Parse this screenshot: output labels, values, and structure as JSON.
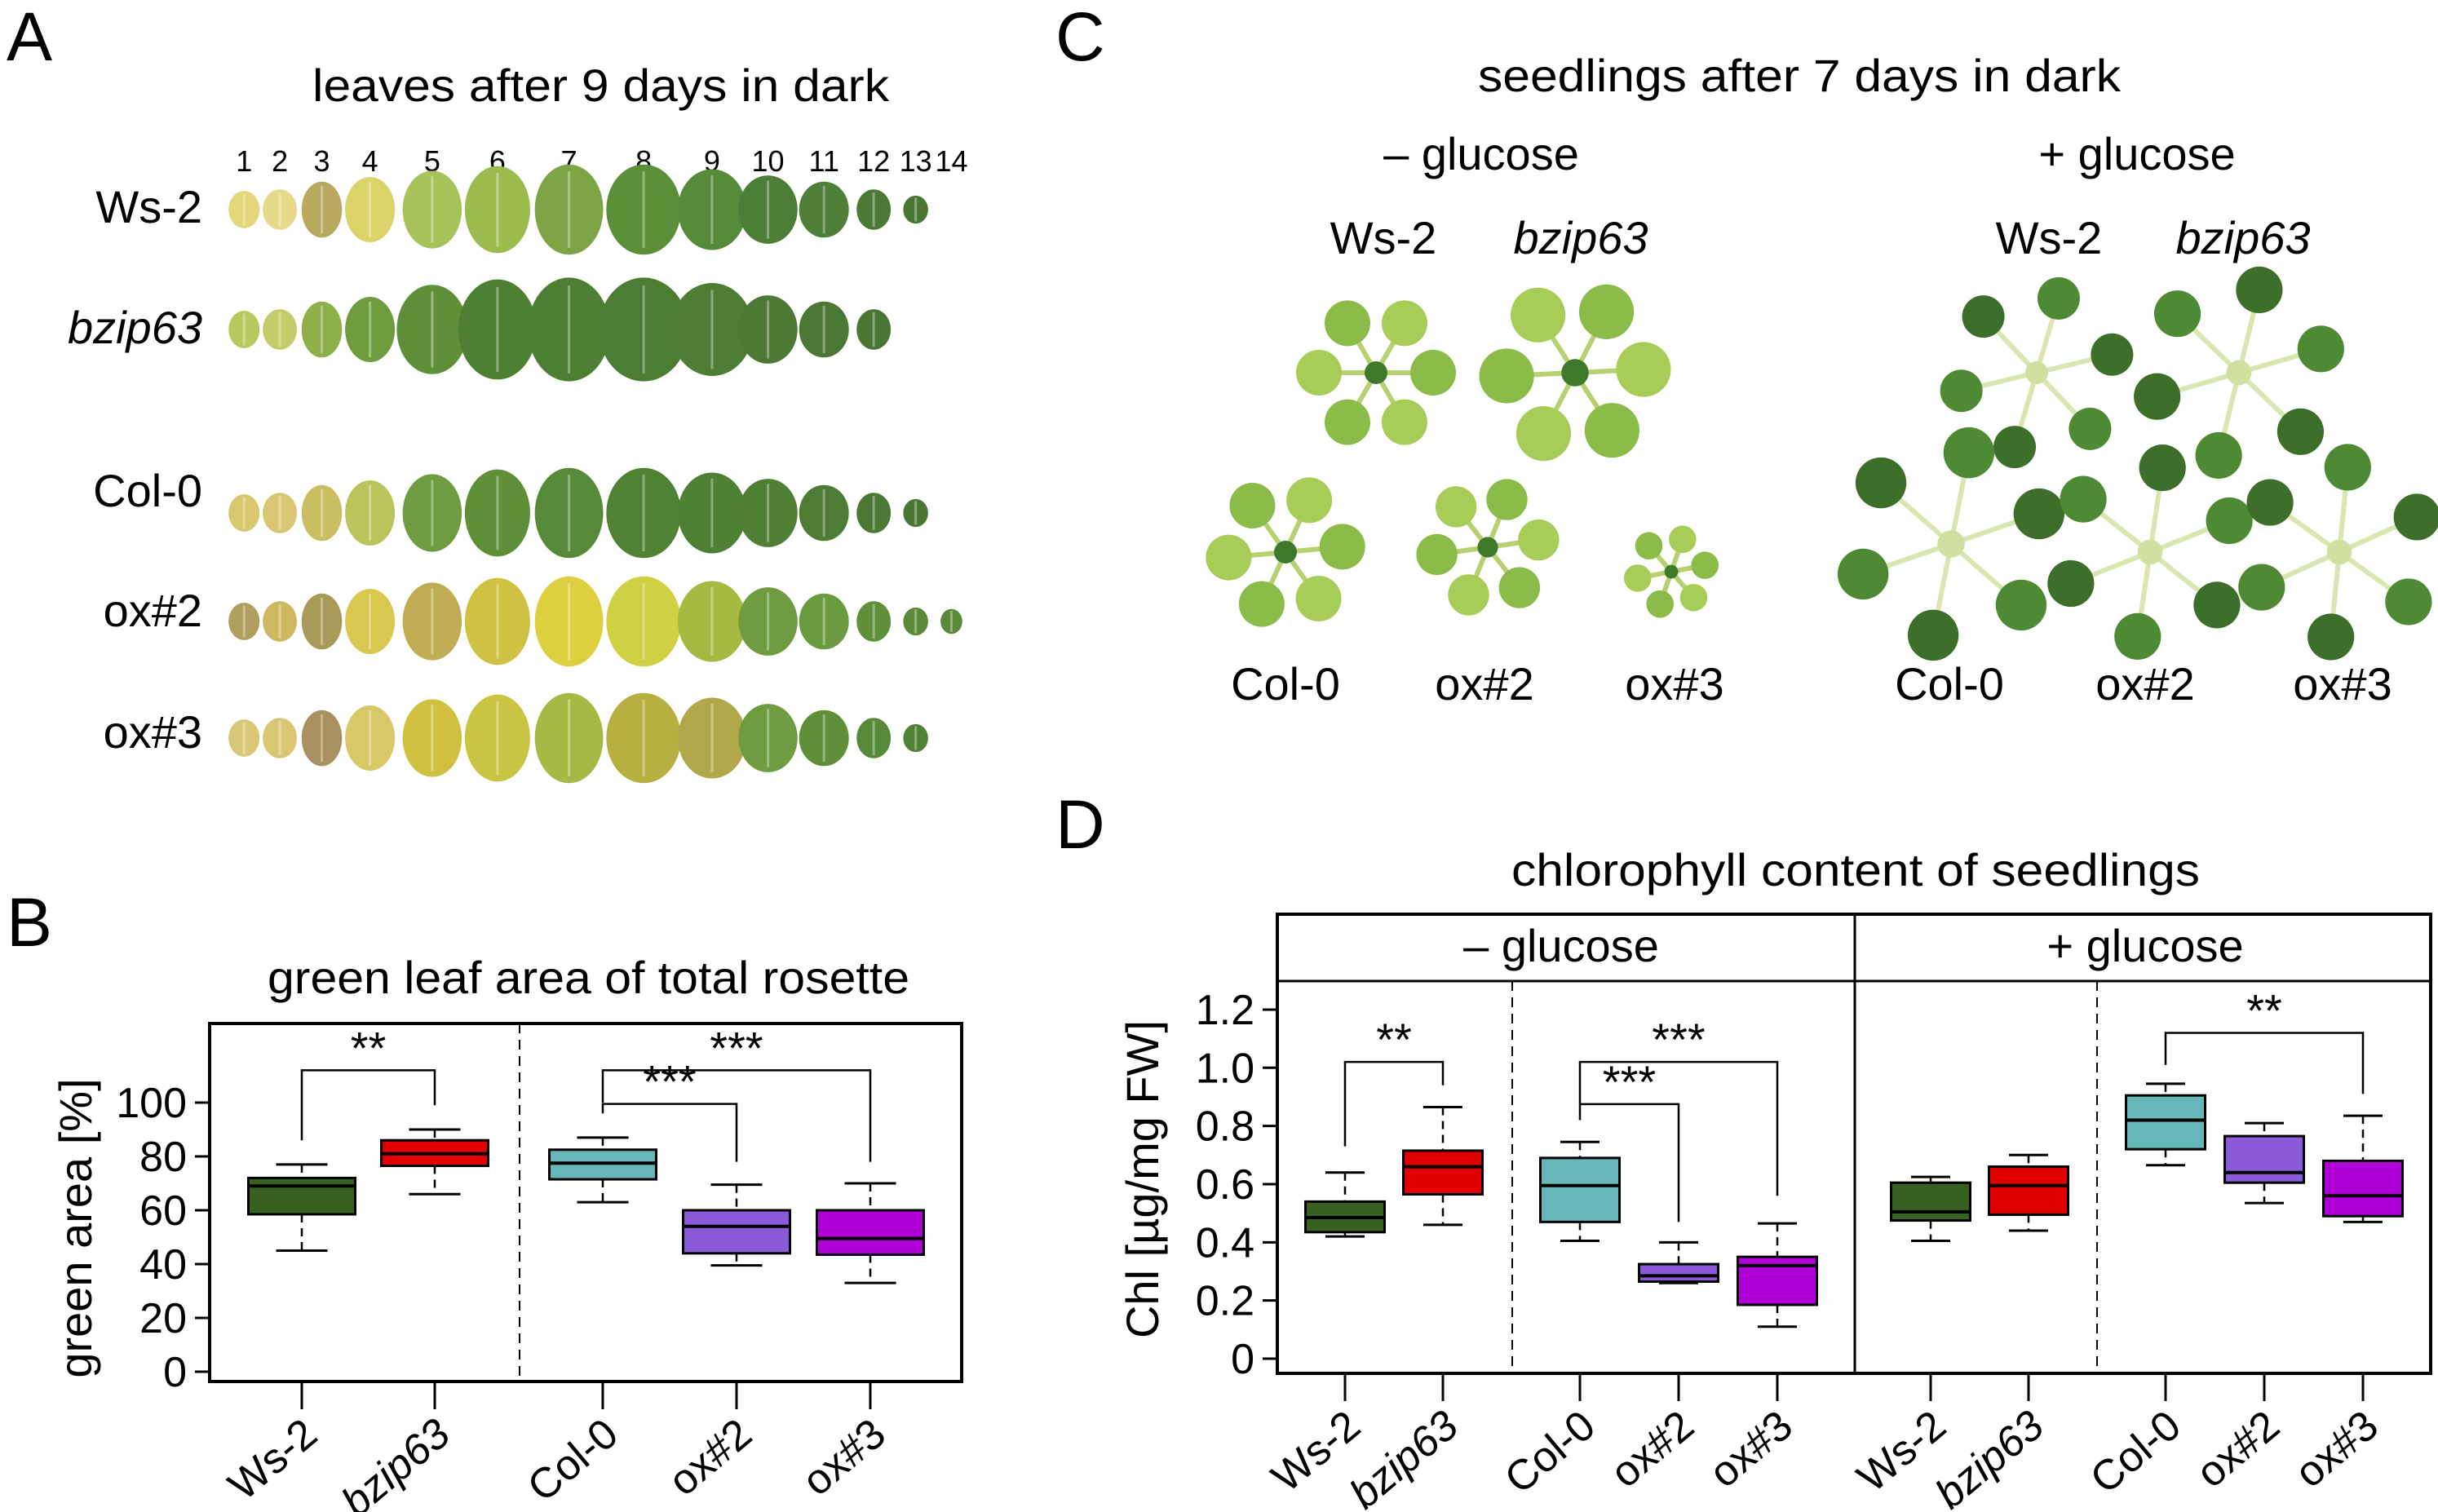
{
  "panel_a": {
    "letter": "A",
    "title": "leaves after 9 days in dark",
    "leaf_numbers": [
      "1",
      "2",
      "3",
      "4",
      "5",
      "6",
      "7",
      "8",
      "9",
      "10",
      "11",
      "12",
      "13",
      "14"
    ],
    "rows": [
      "Ws-2",
      "bzip63",
      "Col-0",
      "ox#2",
      "ox#3"
    ]
  },
  "panel_c": {
    "letter": "C",
    "title": "seedlings after 7 days in dark",
    "groups": [
      "– glucose",
      "+ glucose"
    ],
    "top_labels": [
      "Ws-2",
      "bzip63",
      "Ws-2",
      "bzip63"
    ],
    "bottom_labels": [
      "Col-0",
      "ox#2",
      "ox#3",
      "Col-0",
      "ox#2",
      "ox#3"
    ]
  },
  "chart_data": [
    {
      "panel": "B",
      "type": "boxplot",
      "title": "green leaf area of total rosette",
      "ylabel": "green area [%]",
      "ylim": [
        0,
        100
      ],
      "yticks": [
        "0",
        "20",
        "40",
        "60",
        "80",
        "100"
      ],
      "categories": [
        "Ws-2",
        "bzip63",
        "Col-0",
        "ox#2",
        "ox#3"
      ],
      "colors": [
        "#386020",
        "#e00000",
        "#66b8b8",
        "#8a5ad8",
        "#b000d8"
      ],
      "boxes": [
        {
          "min": 45,
          "q1": 58.5,
          "median": 69,
          "q3": 72,
          "max": 77
        },
        {
          "min": 66,
          "q1": 76.5,
          "median": 81,
          "q3": 86,
          "max": 90
        },
        {
          "min": 63,
          "q1": 71.5,
          "median": 77.5,
          "q3": 82.5,
          "max": 87
        },
        {
          "min": 39.5,
          "q1": 44,
          "median": 54,
          "q3": 60,
          "max": 69.5
        },
        {
          "min": 33,
          "q1": 43.5,
          "median": 49.5,
          "q3": 60,
          "max": 70
        }
      ],
      "significance": [
        {
          "from": 0,
          "to": 1,
          "y": 112,
          "left_end": 86,
          "right_end": 99,
          "label": "**"
        },
        {
          "from": 2,
          "to": 4,
          "y": 112,
          "left_end": 100,
          "right_end": 78,
          "label": "***"
        },
        {
          "from": 2,
          "to": 3,
          "y": 99.5,
          "left_end": 96,
          "right_end": 78,
          "label": "***"
        }
      ]
    },
    {
      "panel": "D",
      "type": "boxplot",
      "title": "chlorophyll content of seedlings",
      "ylabel": "Chl [µg/mg FW]",
      "ylim": [
        0,
        1.2
      ],
      "yticks": [
        "0",
        "0.2",
        "0.4",
        "0.6",
        "0.8",
        "1.0",
        "1.2"
      ],
      "facets": [
        "– glucose",
        "+ glucose"
      ],
      "categories": [
        "Ws-2",
        "bzip63",
        "Col-0",
        "ox#2",
        "ox#3",
        "Ws-2",
        "bzip63",
        "Col-0",
        "ox#2",
        "ox#3"
      ],
      "colors": [
        "#386020",
        "#e00000",
        "#66b8b8",
        "#8a5ad8",
        "#b000d8",
        "#386020",
        "#e00000",
        "#66b8b8",
        "#8a5ad8",
        "#b000d8"
      ],
      "boxes": [
        {
          "min": 0.42,
          "q1": 0.435,
          "median": 0.485,
          "q3": 0.54,
          "max": 0.64
        },
        {
          "min": 0.46,
          "q1": 0.565,
          "median": 0.66,
          "q3": 0.715,
          "max": 0.865
        },
        {
          "min": 0.405,
          "q1": 0.47,
          "median": 0.595,
          "q3": 0.69,
          "max": 0.745
        },
        {
          "min": 0.26,
          "q1": 0.265,
          "median": 0.285,
          "q3": 0.325,
          "max": 0.4
        },
        {
          "min": 0.11,
          "q1": 0.185,
          "median": 0.32,
          "q3": 0.35,
          "max": 0.465
        },
        {
          "min": 0.405,
          "q1": 0.475,
          "median": 0.505,
          "q3": 0.605,
          "max": 0.625
        },
        {
          "min": 0.44,
          "q1": 0.495,
          "median": 0.595,
          "q3": 0.66,
          "max": 0.7
        },
        {
          "min": 0.665,
          "q1": 0.72,
          "median": 0.82,
          "q3": 0.905,
          "max": 0.945
        },
        {
          "min": 0.535,
          "q1": 0.605,
          "median": 0.64,
          "q3": 0.765,
          "max": 0.81
        },
        {
          "min": 0.47,
          "q1": 0.49,
          "median": 0.56,
          "q3": 0.68,
          "max": 0.835
        }
      ],
      "significance": [
        {
          "from": 0,
          "to": 1,
          "y": 1.02,
          "left_end": 0.73,
          "right_end": 0.94,
          "label": "**"
        },
        {
          "from": 2,
          "to": 4,
          "y": 1.02,
          "left_end": 0.875,
          "right_end": 0.56,
          "label": "***"
        },
        {
          "from": 2,
          "to": 3,
          "y": 0.875,
          "left_end": 0.82,
          "right_end": 0.47,
          "label": "***"
        },
        {
          "from": 7,
          "to": 9,
          "y": 1.12,
          "left_end": 1.01,
          "right_end": 0.91,
          "label": "**"
        }
      ]
    }
  ]
}
